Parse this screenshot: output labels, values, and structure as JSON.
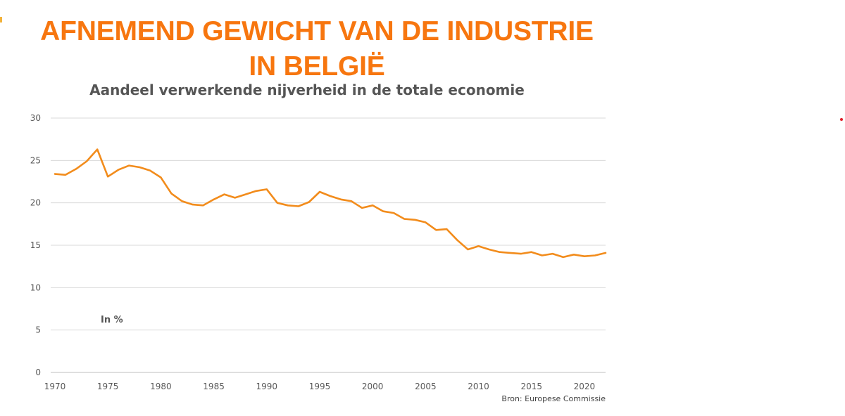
{
  "headline": {
    "line1": "AFNEMEND GEWICHT VAN DE INDUSTRIE",
    "line2": "IN BELGIË"
  },
  "source": "Bron: Europese Commissie",
  "colors": {
    "headline": "#f7760f",
    "line": "#f28c1c",
    "grid": "#d9d9d9",
    "text": "#555555"
  },
  "chart_data": {
    "type": "line",
    "title": "Aandeel verwerkende nijverheid in de totale economie",
    "annotation": "In %",
    "xlabel": "",
    "ylabel": "",
    "xlim": [
      1970,
      2022
    ],
    "ylim": [
      0,
      30
    ],
    "xticks": [
      1970,
      1975,
      1980,
      1985,
      1990,
      1995,
      2000,
      2005,
      2010,
      2015,
      2020
    ],
    "yticks": [
      0,
      5,
      10,
      15,
      20,
      25,
      30
    ],
    "grid": true,
    "legend": "none",
    "series": [
      {
        "x": [
          1970,
          1971,
          1972,
          1973,
          1974,
          1975,
          1976,
          1977,
          1978,
          1979,
          1980,
          1981,
          1982,
          1983,
          1984,
          1985,
          1986,
          1987,
          1988,
          1989,
          1990,
          1991,
          1992,
          1993,
          1994,
          1995,
          1996,
          1997,
          1998,
          1999,
          2000,
          2001,
          2002,
          2003,
          2004,
          2005,
          2006,
          2007,
          2008,
          2009,
          2010,
          2011,
          2012,
          2013,
          2014,
          2015,
          2016,
          2017,
          2018,
          2019,
          2020,
          2021,
          2022
        ],
        "values": [
          23.4,
          23.3,
          24.0,
          24.9,
          26.3,
          23.1,
          23.9,
          24.4,
          24.2,
          23.8,
          23.0,
          21.1,
          20.2,
          19.8,
          19.7,
          20.4,
          21.0,
          20.6,
          21.0,
          21.4,
          21.6,
          20.0,
          19.7,
          19.6,
          20.1,
          21.3,
          20.8,
          20.4,
          20.2,
          19.4,
          19.7,
          19.0,
          18.8,
          18.1,
          18.0,
          17.7,
          16.8,
          16.9,
          15.6,
          14.5,
          14.9,
          14.5,
          14.2,
          14.1,
          14.0,
          14.2,
          13.8,
          14.0,
          13.6,
          13.9,
          13.7,
          13.8,
          14.1
        ]
      }
    ]
  }
}
